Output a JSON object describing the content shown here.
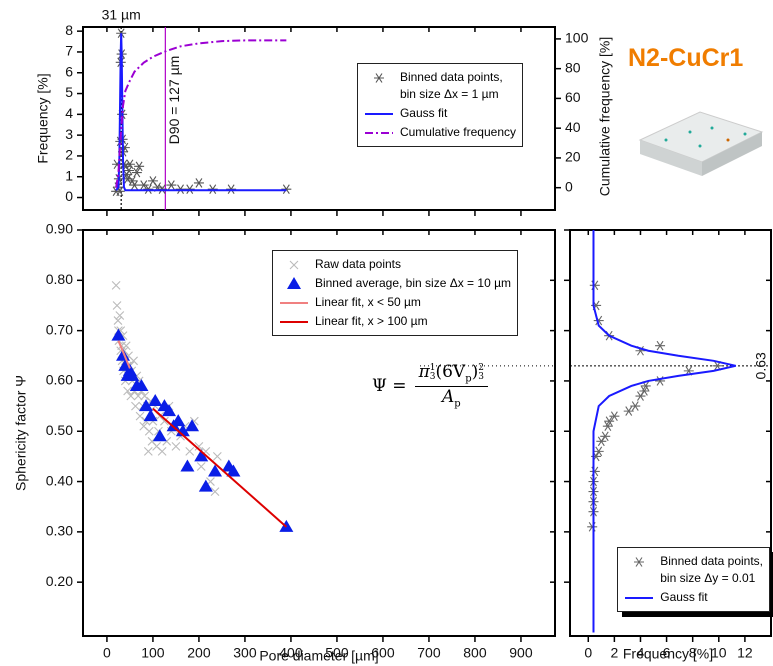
{
  "header": {
    "title": "N2-CuCr1"
  },
  "chart_data": [
    {
      "type": "scatter",
      "ylabel": "Frequency [%]",
      "y2label": "Cumulative frequency [%]",
      "xlim": [
        -52,
        974
      ],
      "ylim": [
        -0.6,
        8.2
      ],
      "yticks": [
        0,
        1,
        2,
        3,
        4,
        5,
        6,
        7,
        8
      ],
      "y2lim": [
        -15,
        108
      ],
      "y2ticks": [
        0,
        20,
        40,
        60,
        80,
        100
      ],
      "legend": "top right",
      "annotations": [
        {
          "value": 31,
          "label": "31 µm",
          "color": "#000000",
          "dash": "dotted"
        },
        {
          "value": 127,
          "label": "D90 = 127 µm",
          "color": "#b000c8",
          "dash": "solid"
        }
      ],
      "series": [
        {
          "name": "Binned data points,\nbin size Δx = 1 µm",
          "style": "asterisk",
          "color": "#555555",
          "x": [
            20,
            22,
            24,
            26,
            28,
            29,
            30,
            31,
            32,
            33,
            34,
            35,
            37,
            39,
            41,
            43,
            45,
            48,
            50,
            55,
            60,
            65,
            70,
            80,
            90,
            100,
            110,
            120,
            140,
            160,
            180,
            200,
            230,
            270,
            390
          ],
          "values": [
            0.3,
            1.6,
            0.5,
            0.9,
            0.3,
            2.7,
            6.5,
            7.9,
            6.9,
            4.0,
            2.8,
            2.2,
            1.6,
            2.4,
            1.5,
            1.1,
            0.9,
            1.3,
            1.6,
            0.8,
            0.6,
            1.2,
            1.5,
            0.6,
            0.4,
            0.8,
            0.5,
            0.4,
            0.6,
            0.4,
            0.4,
            0.7,
            0.4,
            0.4,
            0.4
          ]
        },
        {
          "name": "Gauss fit",
          "style": "line",
          "color": "#1a1aff",
          "x": [
            20,
            25,
            27,
            29,
            30,
            31,
            32,
            33,
            35,
            37,
            40,
            60,
            390
          ],
          "values": [
            0.35,
            0.5,
            1.8,
            5.3,
            7.0,
            7.9,
            7.0,
            5.3,
            1.8,
            0.5,
            0.35,
            0.35,
            0.35
          ]
        },
        {
          "name": "Cumulative frequency",
          "style": "dashdot",
          "color": "#9b00d3",
          "axis": "y2",
          "x": [
            20,
            25,
            30,
            35,
            40,
            50,
            60,
            80,
            100,
            130,
            160,
            200,
            250,
            300,
            390
          ],
          "values": [
            0,
            10,
            35,
            55,
            65,
            72,
            78,
            84,
            88,
            92,
            95,
            97,
            98.5,
            99,
            99
          ]
        }
      ]
    },
    {
      "type": "scatter",
      "xlabel": "Pore diameter [µm]",
      "ylabel": "Sphericity factor Ψ",
      "xlim": [
        -52,
        974
      ],
      "xticks": [
        0,
        100,
        200,
        300,
        400,
        500,
        600,
        700,
        800,
        900
      ],
      "ylim": [
        0.093,
        0.9
      ],
      "yticks": [
        {
          "value": 0.2,
          "label": "0.20"
        },
        {
          "value": 0.3,
          "label": "0.30"
        },
        {
          "value": 0.4,
          "label": "0.40"
        },
        {
          "value": 0.5,
          "label": "0.50"
        },
        {
          "value": 0.6,
          "label": "0.60"
        },
        {
          "value": 0.7,
          "label": "0.70"
        },
        {
          "value": 0.8,
          "label": "0.80"
        },
        {
          "value": 0.9,
          "label": "0.90"
        }
      ],
      "legend": "top right",
      "formula": {
        "lhs": "Ψ =",
        "numerator": [
          "π",
          "1",
          "3",
          "(6V",
          "p",
          ")",
          "2",
          "3"
        ],
        "denominator": [
          "A",
          "p"
        ]
      },
      "series": [
        {
          "name": "Raw data points",
          "style": "x",
          "color": "#bbbbbb",
          "x": [
            20,
            22,
            24,
            25,
            26,
            28,
            30,
            30,
            32,
            33,
            35,
            36,
            38,
            40,
            40,
            42,
            44,
            45,
            47,
            48,
            50,
            52,
            54,
            55,
            58,
            60,
            62,
            65,
            68,
            70,
            72,
            75,
            78,
            80,
            82,
            85,
            88,
            90,
            92,
            95,
            98,
            100,
            105,
            108,
            112,
            115,
            120,
            125,
            130,
            135,
            140,
            150,
            160,
            170,
            180,
            190,
            200,
            205,
            215,
            225,
            235,
            240
          ],
          "values": [
            0.79,
            0.75,
            0.72,
            0.7,
            0.68,
            0.73,
            0.7,
            0.66,
            0.67,
            0.64,
            0.69,
            0.62,
            0.66,
            0.64,
            0.6,
            0.67,
            0.63,
            0.58,
            0.65,
            0.61,
            0.63,
            0.57,
            0.62,
            0.6,
            0.64,
            0.58,
            0.55,
            0.61,
            0.57,
            0.6,
            0.53,
            0.58,
            0.55,
            0.51,
            0.57,
            0.52,
            0.55,
            0.46,
            0.5,
            0.56,
            0.48,
            0.52,
            0.55,
            0.47,
            0.5,
            0.53,
            0.46,
            0.52,
            0.48,
            0.55,
            0.5,
            0.47,
            0.49,
            0.51,
            0.46,
            0.52,
            0.47,
            0.43,
            0.46,
            0.4,
            0.38,
            0.45
          ]
        },
        {
          "name": "Binned average, bin size Δx = 10 µm",
          "style": "triangle",
          "color": "#0a1ee6",
          "x": [
            25,
            35,
            40,
            45,
            50,
            55,
            65,
            75,
            85,
            95,
            105,
            115,
            125,
            135,
            145,
            155,
            165,
            175,
            185,
            205,
            215,
            235,
            265,
            275,
            390
          ],
          "values": [
            0.69,
            0.65,
            0.63,
            0.61,
            0.62,
            0.61,
            0.59,
            0.59,
            0.55,
            0.53,
            0.56,
            0.49,
            0.55,
            0.54,
            0.51,
            0.52,
            0.5,
            0.43,
            0.51,
            0.45,
            0.39,
            0.42,
            0.43,
            0.42,
            0.31
          ]
        },
        {
          "name": "Linear fit, x < 50 µm",
          "style": "line",
          "color": "#f08080",
          "x": [
            25,
            50
          ],
          "values": [
            0.68,
            0.625
          ]
        },
        {
          "name": "Linear fit, x > 100 µm",
          "style": "line",
          "color": "#dd0000",
          "x": [
            100,
            390
          ],
          "values": [
            0.545,
            0.31
          ]
        }
      ]
    },
    {
      "type": "scatter",
      "xlabel": "Frequency [%]",
      "xlim": [
        -1.4,
        14
      ],
      "xticks": [
        0,
        2,
        4,
        6,
        8,
        10,
        12
      ],
      "ylim": [
        0.093,
        0.9
      ],
      "hline": 0.63,
      "legend": "bottom right",
      "series": [
        {
          "name": "Binned data points,\nbin size Δy = 0.01",
          "style": "asterisk",
          "color": "#666666",
          "x": [
            0.3,
            0.4,
            0.4,
            0.5,
            0.6,
            0.8,
            1.0,
            1.3,
            1.5,
            1.6,
            2.0,
            3.1,
            3.6,
            4.0,
            4.3,
            4.4,
            5.5,
            7.7,
            9.9,
            5.5,
            4.0,
            1.6,
            0.8,
            0.6,
            0.5,
            0.4,
            0.4
          ],
          "values": [
            0.31,
            0.38,
            0.4,
            0.42,
            0.45,
            0.46,
            0.48,
            0.49,
            0.51,
            0.52,
            0.53,
            0.54,
            0.55,
            0.57,
            0.58,
            0.59,
            0.6,
            0.62,
            0.63,
            0.67,
            0.66,
            0.69,
            0.72,
            0.75,
            0.79,
            0.36,
            0.34
          ]
        },
        {
          "name": "Gauss fit",
          "style": "line",
          "color": "#1a1aff",
          "x": [
            0.4,
            0.4,
            0.8,
            1.6,
            3.3,
            4.6,
            6.9,
            9.6,
            11.3,
            9.6,
            6.9,
            4.6,
            3.3,
            1.6,
            0.8,
            0.4,
            0.4
          ],
          "values": [
            0.1,
            0.5,
            0.55,
            0.57,
            0.59,
            0.6,
            0.61,
            0.62,
            0.63,
            0.64,
            0.65,
            0.66,
            0.67,
            0.69,
            0.71,
            0.75,
            0.9
          ]
        }
      ]
    }
  ]
}
